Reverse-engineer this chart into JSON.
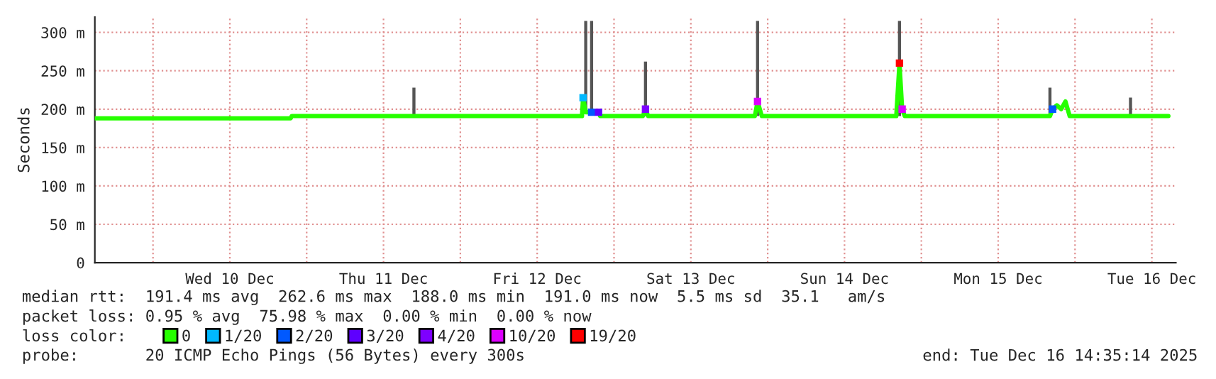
{
  "chart_data": {
    "type": "line",
    "ylabel": "Seconds",
    "xlim": [
      "2025-12-09T14:55",
      "2025-12-16T15:45"
    ],
    "xticks": [
      {
        "value": "2025-12-10T00:00",
        "label": null
      },
      {
        "value": "2025-12-10T12:00",
        "label": "Wed 10 Dec"
      },
      {
        "value": "2025-12-11T00:00",
        "label": null
      },
      {
        "value": "2025-12-11T12:00",
        "label": "Thu 11 Dec"
      },
      {
        "value": "2025-12-12T00:00",
        "label": null
      },
      {
        "value": "2025-12-12T12:00",
        "label": "Fri 12 Dec"
      },
      {
        "value": "2025-12-13T00:00",
        "label": null
      },
      {
        "value": "2025-12-13T12:00",
        "label": "Sat 13 Dec"
      },
      {
        "value": "2025-12-14T00:00",
        "label": null
      },
      {
        "value": "2025-12-14T12:00",
        "label": "Sun 14 Dec"
      },
      {
        "value": "2025-12-15T00:00",
        "label": null
      },
      {
        "value": "2025-12-15T12:00",
        "label": "Mon 15 Dec"
      },
      {
        "value": "2025-12-16T00:00",
        "label": null
      },
      {
        "value": "2025-12-16T12:00",
        "label": "Tue 16 Dec"
      }
    ],
    "ylim": [
      0,
      320
    ],
    "yticks": [
      0,
      {
        "value": 50,
        "label": "50 m"
      },
      {
        "value": 100,
        "label": "100 m"
      },
      {
        "value": 150,
        "label": "150 m"
      },
      {
        "value": 200,
        "label": "200 m"
      },
      {
        "value": 250,
        "label": "250 m"
      },
      {
        "value": 300,
        "label": "300 m"
      }
    ],
    "grid": true,
    "legend": "bottom",
    "legend_title": "loss color:",
    "series": [
      {
        "type": "bar",
        "color": "#555555",
        "x": [
          "2025-12-11T16:45",
          "2025-12-12T19:35",
          "2025-12-12T20:30",
          "2025-12-13T04:55",
          "2025-12-13T22:25",
          "2025-12-14T20:35",
          "2025-12-15T20:05",
          "2025-12-16T08:40"
        ],
        "base": [
          191,
          196,
          196,
          191,
          191,
          191,
          191,
          191
        ],
        "values": [
          37,
          119,
          119,
          71,
          124,
          124,
          37,
          24
        ]
      },
      {
        "name": "0",
        "color": "#26ff00",
        "x": [
          "2025-12-09T14:55",
          "2025-12-10T21:30",
          "2025-12-10T21:40",
          "2025-12-12T19:00",
          "2025-12-12T19:10",
          "2025-12-12T19:35",
          "2025-12-12T21:35",
          "2025-12-12T21:50",
          "2025-12-13T04:30",
          "2025-12-13T04:55",
          "2025-12-13T05:20",
          "2025-12-13T22:00",
          "2025-12-13T22:25",
          "2025-12-13T23:05",
          "2025-12-14T20:05",
          "2025-12-14T20:35",
          "2025-12-14T21:00",
          "2025-12-14T21:25",
          "2025-12-15T20:05",
          "2025-12-15T20:30",
          "2025-12-15T21:10",
          "2025-12-15T21:50",
          "2025-12-15T22:30",
          "2025-12-15T23:10",
          "2025-12-16T14:35"
        ],
        "values": [
          188,
          188,
          191,
          191,
          215,
          196,
          196,
          191,
          191,
          200,
          191,
          191,
          210,
          191,
          191,
          260,
          200,
          191,
          191,
          200,
          205,
          200,
          210,
          191,
          191
        ]
      },
      {
        "type": "scatter",
        "name": "1/20",
        "color": "#00b8ff",
        "x": [
          "2025-12-12T19:10"
        ],
        "values": [
          215
        ]
      },
      {
        "type": "scatter",
        "name": "2/20",
        "color": "#0059ff",
        "x": [
          "2025-12-12T20:30",
          "2025-12-15T20:30"
        ],
        "values": [
          196,
          200
        ]
      },
      {
        "type": "scatter",
        "name": "3/20",
        "color": "#5e00ff",
        "x": [
          "2025-12-12T21:35"
        ],
        "values": [
          196
        ]
      },
      {
        "type": "scatter",
        "name": "4/20",
        "color": "#7e00ff",
        "x": [
          "2025-12-13T04:55"
        ],
        "values": [
          200
        ]
      },
      {
        "type": "scatter",
        "name": "10/20",
        "color": "#dd00ff",
        "x": [
          "2025-12-13T22:25",
          "2025-12-14T21:00"
        ],
        "values": [
          210,
          200
        ]
      },
      {
        "type": "scatter",
        "name": "19/20",
        "color": "#ff0000",
        "x": [
          "2025-12-14T20:35"
        ],
        "values": [
          260
        ]
      }
    ],
    "annotations": [
      "median rtt:  191.4 ms avg  262.6 ms max  188.0 ms min  191.0 ms now  5.5 ms sd  35.1   am/s",
      "packet loss: 0.95 % avg  75.98 % max  0.00 % min  0.00 % now",
      "probe:       20 ICMP Echo Pings (56 Bytes) every 300s",
      "end: Tue Dec 16 14:35:14 2025"
    ]
  }
}
